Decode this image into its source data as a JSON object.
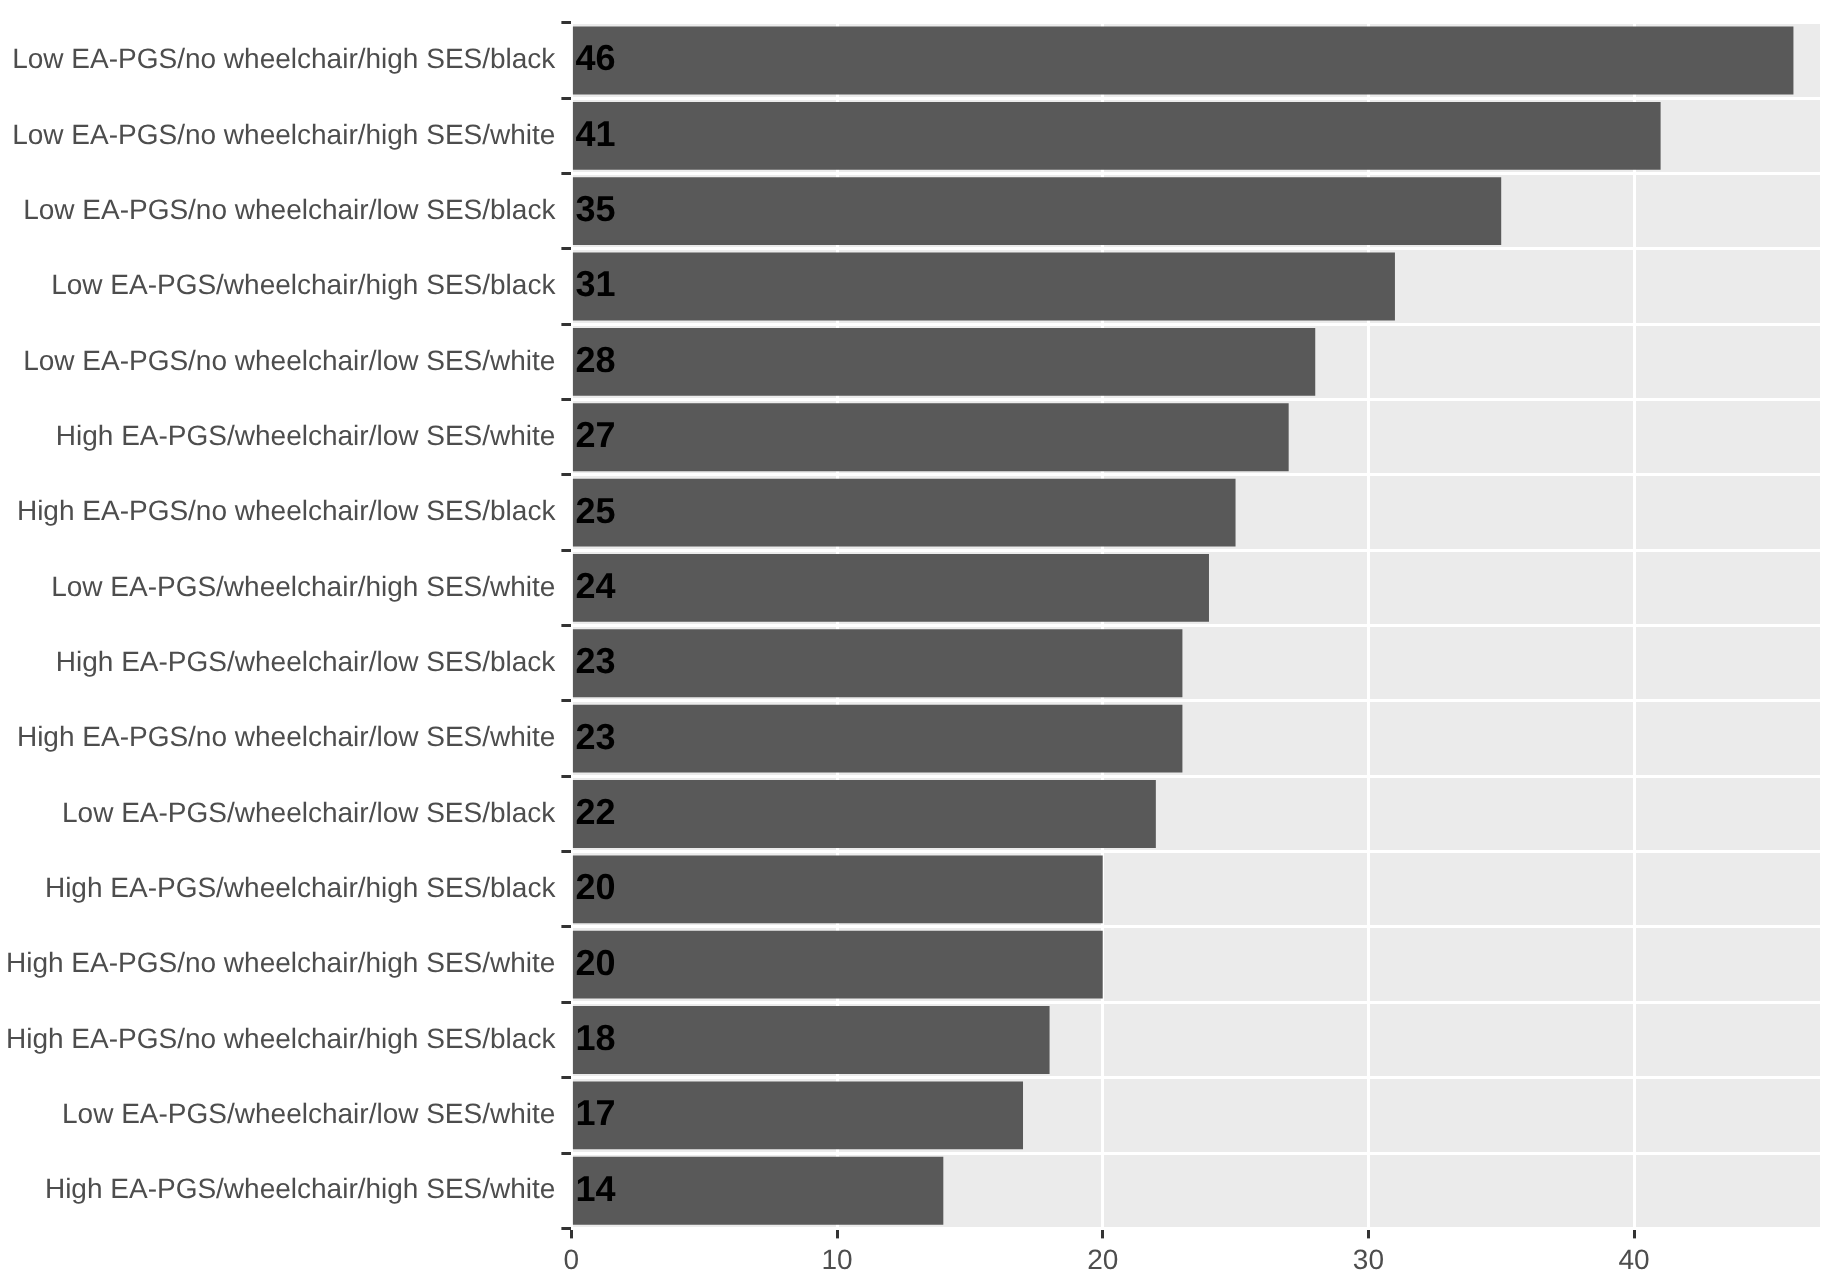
{
  "chart_data": {
    "type": "bar",
    "orientation": "horizontal",
    "categories": [
      "Low EA-PGS/no wheelchair/high SES/black",
      "Low EA-PGS/no wheelchair/high SES/white",
      "Low EA-PGS/no wheelchair/low SES/black",
      "Low EA-PGS/wheelchair/high SES/black",
      "Low EA-PGS/no wheelchair/low SES/white",
      "High EA-PGS/wheelchair/low SES/white",
      "High EA-PGS/no wheelchair/low SES/black",
      "Low EA-PGS/wheelchair/high SES/white",
      "High EA-PGS/wheelchair/low SES/black",
      "High EA-PGS/no wheelchair/low SES/white",
      "Low EA-PGS/wheelchair/low SES/black",
      "High EA-PGS/wheelchair/high SES/black",
      "High EA-PGS/no wheelchair/high SES/white",
      "High EA-PGS/no wheelchair/high SES/black",
      "Low EA-PGS/wheelchair/low SES/white",
      "High EA-PGS/wheelchair/high SES/white"
    ],
    "values": [
      46,
      41,
      35,
      31,
      28,
      27,
      25,
      24,
      23,
      23,
      22,
      20,
      20,
      18,
      17,
      14
    ],
    "color": "#595959",
    "xlim": [
      0,
      47
    ],
    "xticks": [
      0,
      10,
      20,
      30,
      40
    ],
    "grid": true,
    "data_labels": true
  }
}
